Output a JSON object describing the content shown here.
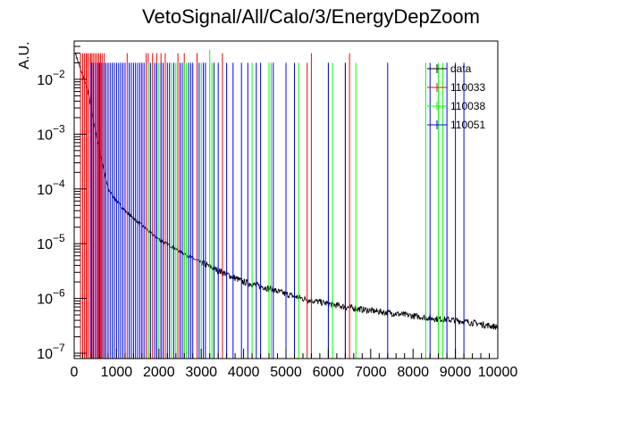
{
  "chart_data": {
    "type": "line",
    "title": "VetoSignal/All/Calo/3/EnergyDepZoom",
    "xlabel": "",
    "ylabel": "A.U.",
    "yscale": "log",
    "xlim": [
      0,
      10000
    ],
    "ylim": [
      8e-08,
      0.05
    ],
    "grid": false,
    "legend_position": "top-right",
    "x_ticks": [
      "0",
      "1000",
      "2000",
      "3000",
      "4000",
      "5000",
      "6000",
      "7000",
      "8000",
      "9000",
      "10000"
    ],
    "y_ticks": [
      {
        "value": 1e-07,
        "label_base": "10",
        "label_exp": "−7"
      },
      {
        "value": 1e-06,
        "label_base": "10",
        "label_exp": "−6"
      },
      {
        "value": 1e-05,
        "label_base": "10",
        "label_exp": "−5"
      },
      {
        "value": 0.0001,
        "label_base": "10",
        "label_exp": "−4"
      },
      {
        "value": 0.001,
        "label_base": "10",
        "label_exp": "−3"
      },
      {
        "value": 0.01,
        "label_base": "10",
        "label_exp": "−2"
      }
    ],
    "series": [
      {
        "name": "data",
        "color": "#000000",
        "style": "noisy-line",
        "x": [
          30,
          60,
          100,
          150,
          200,
          250,
          300,
          350,
          400,
          500,
          600,
          700,
          800,
          1000,
          1200,
          1500,
          1800,
          2000,
          2500,
          3000,
          3500,
          4000,
          4500,
          5000,
          5500,
          6000,
          6500,
          7000,
          7500,
          8000,
          8500,
          9000,
          9500,
          10000
        ],
        "y": [
          0.03,
          0.025,
          0.02,
          0.015,
          0.012,
          0.009,
          0.007,
          0.005,
          0.003,
          0.0012,
          0.0005,
          0.00022,
          0.0001,
          6e-05,
          4e-05,
          2.5e-05,
          1.6e-05,
          1.2e-05,
          7.2e-06,
          4.5e-06,
          3e-06,
          2e-06,
          1.6e-06,
          1.2e-06,
          9.5e-07,
          8e-07,
          6.8e-07,
          6e-07,
          5.4e-07,
          4.8e-07,
          4.3e-07,
          4e-07,
          3.5e-07,
          3e-07
        ]
      },
      {
        "name": "110033",
        "color": "#ff0000",
        "style": "spikes",
        "x": [
          150,
          200,
          240,
          280,
          310,
          350,
          390,
          420,
          460,
          500,
          540,
          580,
          620,
          660,
          710,
          800,
          1250,
          1600,
          1700,
          1750,
          1850,
          1950,
          2050,
          2150,
          2450,
          2600,
          2900,
          3500,
          5500,
          5600,
          6400,
          6500
        ],
        "y": [
          0.03,
          0.03,
          0.03,
          0.03,
          0.03,
          0.03,
          0.03,
          0.03,
          0.03,
          0.03,
          0.03,
          0.03,
          0.03,
          0.03,
          0.03,
          0.02,
          0.03,
          0.02,
          0.03,
          0.03,
          0.03,
          0.03,
          0.03,
          0.03,
          0.03,
          0.03,
          0.03,
          0.03,
          0.02,
          0.03,
          0.02,
          0.03
        ]
      },
      {
        "name": "110038",
        "color": "#00ff00",
        "style": "spikes",
        "x": [
          700,
          900,
          1100,
          1300,
          1750,
          1800,
          2000,
          2300,
          2400,
          2600,
          2650,
          3000,
          3200,
          3250,
          4200,
          4600,
          4650,
          5300,
          6000,
          6100,
          6650,
          8300,
          8600,
          8700,
          10000
        ],
        "y": [
          0.02,
          0.02,
          0.02,
          0.02,
          0.02,
          0.02,
          0.02,
          0.02,
          0.02,
          0.02,
          0.02,
          0.02,
          0.035,
          0.02,
          0.02,
          0.02,
          0.02,
          0.02,
          0.02,
          0.02,
          0.02,
          0.02,
          0.02,
          0.02,
          0.02
        ]
      },
      {
        "name": "110051",
        "color": "#0000ff",
        "style": "spikes",
        "x": [
          400,
          450,
          500,
          550,
          600,
          650,
          700,
          750,
          800,
          850,
          900,
          950,
          1000,
          1050,
          1100,
          1150,
          1200,
          1300,
          1350,
          1400,
          1450,
          1500,
          1550,
          1600,
          1650,
          1800,
          1900,
          1950,
          2050,
          2100,
          2200,
          2250,
          2350,
          2500,
          2550,
          2700,
          2750,
          2800,
          2950,
          3050,
          3100,
          3300,
          3400,
          3600,
          3750,
          3950,
          4100,
          4300,
          4400,
          4700,
          5000,
          5200,
          6000,
          6400,
          7400,
          8400,
          8800,
          9000,
          9200
        ],
        "y": [
          0.02,
          0.02,
          0.02,
          0.02,
          0.02,
          0.02,
          0.02,
          0.02,
          0.02,
          0.02,
          0.02,
          0.02,
          0.02,
          0.02,
          0.02,
          0.02,
          0.02,
          0.02,
          0.02,
          0.02,
          0.02,
          0.02,
          0.02,
          0.02,
          0.02,
          0.02,
          0.02,
          0.02,
          0.02,
          0.02,
          0.02,
          0.02,
          0.02,
          0.02,
          0.02,
          0.02,
          0.02,
          0.02,
          0.02,
          0.02,
          0.02,
          0.02,
          0.02,
          0.02,
          0.02,
          0.02,
          0.02,
          0.02,
          0.02,
          0.02,
          0.02,
          0.02,
          0.02,
          0.02,
          0.02,
          0.02,
          0.02,
          0.02,
          0.02
        ]
      }
    ]
  }
}
